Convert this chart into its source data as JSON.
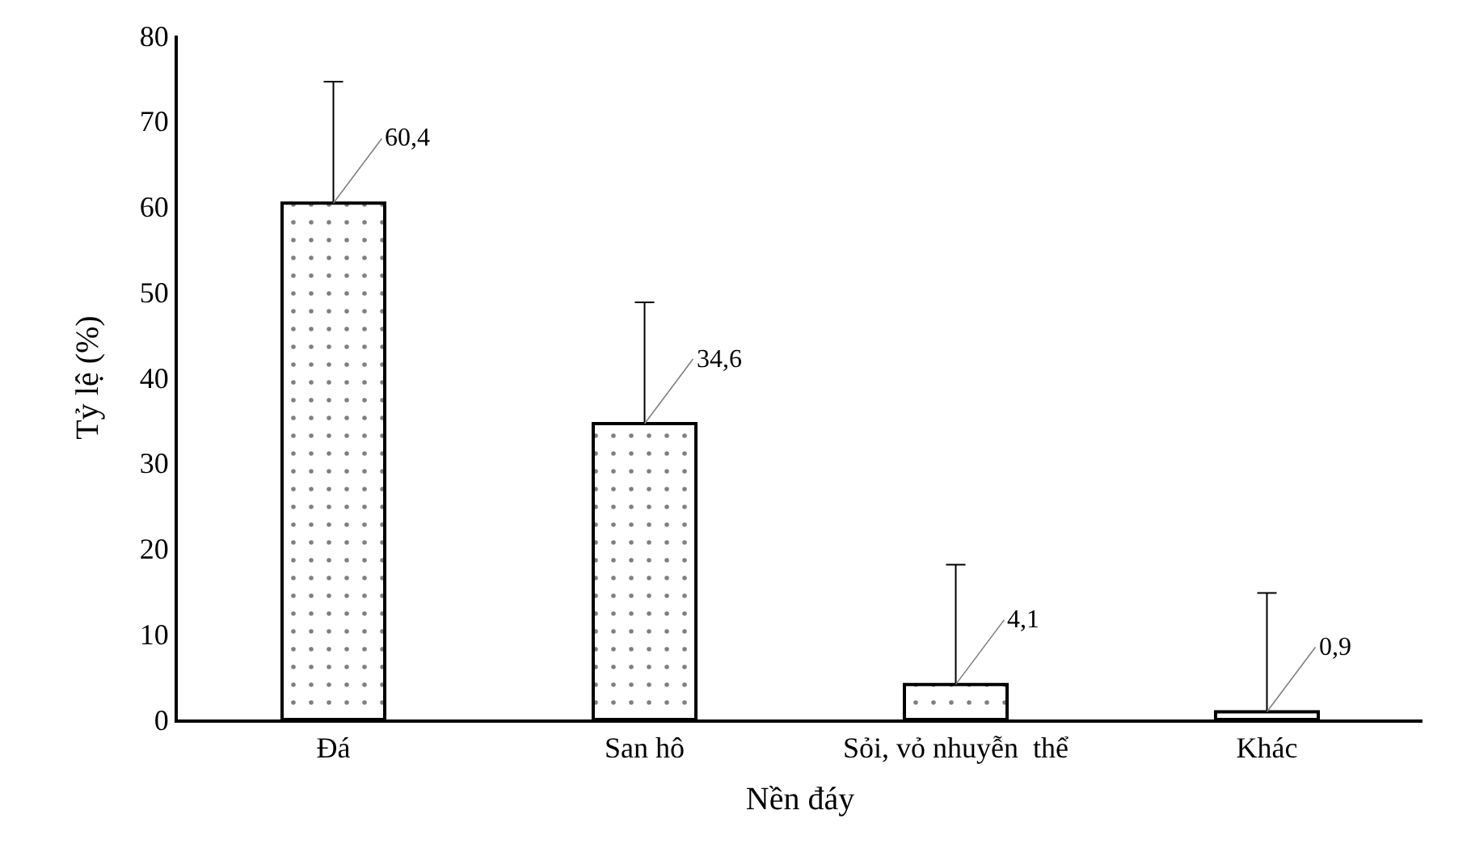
{
  "chart_data": {
    "type": "bar",
    "xlabel": "Nền đáy",
    "ylabel": "Tỷ lệ (%)",
    "categories": [
      "Đá",
      "San hô",
      "Sỏi, vỏ nhuyễn  thể",
      "Khác"
    ],
    "values": [
      60.4,
      34.6,
      4.1,
      0.9
    ],
    "value_labels": [
      "60,4",
      "34,6",
      "4,1",
      "0,9"
    ],
    "errors": [
      [
        60.4,
        74.6
      ],
      [
        34.6,
        48.8
      ],
      [
        4.1,
        18.1
      ],
      [
        0.9,
        14.8
      ]
    ],
    "color": "#000000",
    "ylim": [
      0,
      80
    ],
    "yticks": [
      0,
      10,
      20,
      30,
      40,
      50,
      60,
      70,
      80
    ],
    "legend": false
  }
}
